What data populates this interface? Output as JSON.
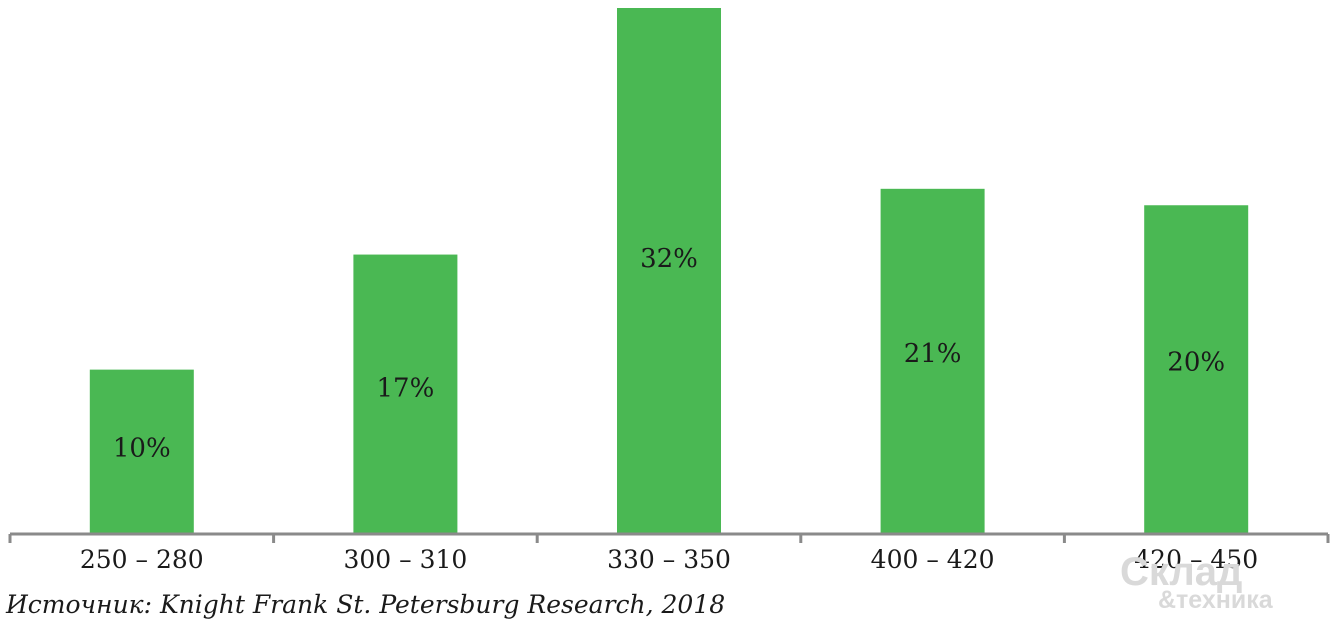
{
  "chart_data": {
    "type": "bar",
    "categories": [
      "250 – 280",
      "300 – 310",
      "330 – 350",
      "400 – 420",
      "420 – 450"
    ],
    "values": [
      10,
      17,
      32,
      21,
      20
    ],
    "value_labels": [
      "10%",
      "17%",
      "32%",
      "21%",
      "20%"
    ],
    "ylim": [
      0,
      32
    ],
    "grid": false,
    "legend": "none",
    "bar_color": "#4ab853"
  },
  "source": "Источник: Knight Frank St. Petersburg Research, 2018",
  "watermark": {
    "line1": "Склад",
    "line2": "&техника"
  }
}
